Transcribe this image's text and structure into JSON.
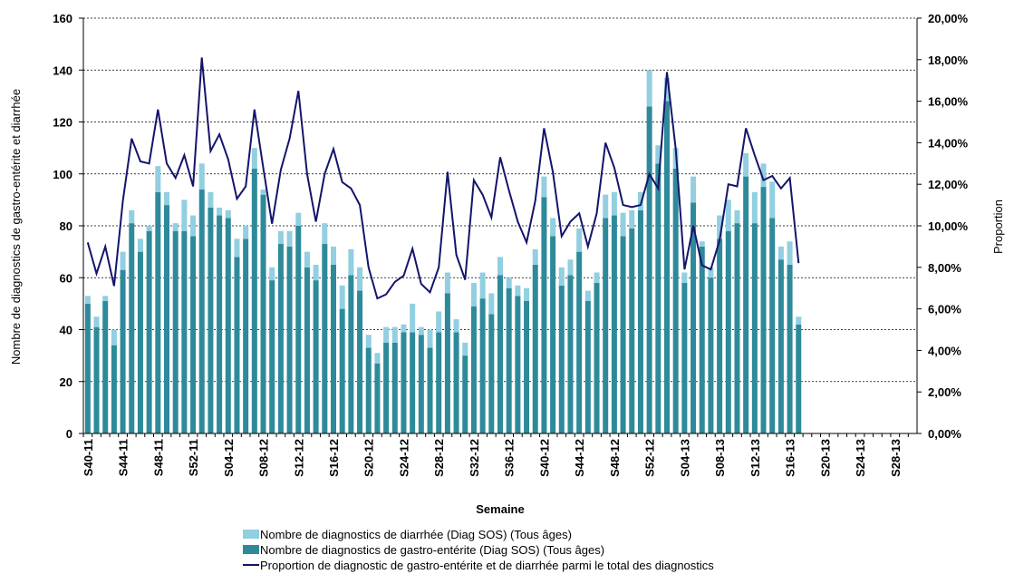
{
  "chart_data": {
    "type": "bar",
    "y_label": "Nombre de diagnostics de gastro-entérite et diarrhée",
    "y2_label": "Proportion",
    "x_label": "Semaine",
    "categories": [
      "S40-11",
      null,
      null,
      null,
      "S44-11",
      null,
      null,
      null,
      "S48-11",
      null,
      null,
      null,
      "S52-11",
      null,
      null,
      null,
      "S04-12",
      null,
      null,
      null,
      "S08-12",
      null,
      null,
      null,
      "S12-12",
      null,
      null,
      null,
      "S16-12",
      null,
      null,
      null,
      "S20-12",
      null,
      null,
      null,
      "S24-12",
      null,
      null,
      null,
      "S28-12",
      null,
      null,
      null,
      "S32-12",
      null,
      null,
      null,
      "S36-12",
      null,
      null,
      null,
      "S40-12",
      null,
      null,
      null,
      "S44-12",
      null,
      null,
      null,
      "S48-12",
      null,
      null,
      null,
      "S52-12",
      null,
      null,
      null,
      "S04-13",
      null,
      null,
      null,
      "S08-13",
      null,
      null,
      null,
      "S12-13",
      null,
      null,
      null,
      "S16-13",
      null,
      null,
      null,
      "S20-13",
      null,
      null,
      null,
      "S24-13",
      null,
      null,
      null,
      "S28-13",
      null,
      null
    ],
    "series": [
      {
        "name": "Nombre de diagnostics de diarrhée (Diag SOS) (Tous âges)",
        "color": "#92cfe0",
        "stack": true,
        "values": [
          3,
          4,
          2,
          6,
          7,
          5,
          5,
          2,
          10,
          5,
          3,
          12,
          8,
          10,
          6,
          3,
          3,
          7,
          5,
          8,
          2,
          5,
          5,
          6,
          5,
          6,
          6,
          8,
          7,
          9,
          10,
          9,
          5,
          4,
          6,
          6,
          3,
          11,
          3,
          7,
          8,
          8,
          5,
          5,
          9,
          10,
          8,
          7,
          4,
          4,
          5,
          6,
          8,
          7,
          7,
          6,
          9,
          4,
          4,
          9,
          9,
          9,
          7,
          7,
          14,
          7,
          9,
          8,
          4,
          10,
          2,
          4,
          9,
          12,
          5,
          9,
          12,
          9,
          14,
          5,
          9,
          3,
          null,
          null,
          null,
          null,
          null,
          null,
          null,
          null,
          null,
          null,
          null,
          null,
          null
        ]
      },
      {
        "name": "Nombre de diagnostics de gastro-entérite (Diag SOS) (Tous âges)",
        "color": "#2e8a9a",
        "values": [
          50,
          41,
          51,
          34,
          63,
          81,
          70,
          78,
          93,
          88,
          78,
          78,
          76,
          94,
          87,
          84,
          83,
          68,
          75,
          102,
          92,
          59,
          73,
          72,
          80,
          64,
          59,
          73,
          65,
          48,
          61,
          55,
          33,
          27,
          35,
          35,
          39,
          39,
          38,
          33,
          39,
          54,
          39,
          30,
          49,
          52,
          46,
          61,
          56,
          53,
          51,
          65,
          91,
          76,
          57,
          61,
          70,
          51,
          58,
          83,
          84,
          76,
          79,
          86,
          126,
          104,
          128,
          102,
          58,
          89,
          72,
          60,
          75,
          78,
          81,
          99,
          81,
          95,
          83,
          67,
          65,
          42,
          null,
          null,
          null,
          null,
          null,
          null,
          null,
          null,
          null,
          null,
          null,
          null,
          null
        ]
      },
      {
        "name": "Proportion de diagnostic de gastro-entérite et de diarrhée parmi le total des diagnostics",
        "color": "#14146b",
        "axis": "y2",
        "line": true,
        "values": [
          9.2,
          7.7,
          9.0,
          7.1,
          11.2,
          14.2,
          13.1,
          13.0,
          15.6,
          13.0,
          12.3,
          13.4,
          11.9,
          18.1,
          13.6,
          14.4,
          13.2,
          11.3,
          11.9,
          15.6,
          12.8,
          10.1,
          12.7,
          14.2,
          16.5,
          12.5,
          10.2,
          12.5,
          13.7,
          12.1,
          11.8,
          11.0,
          8.0,
          6.5,
          6.7,
          7.3,
          7.6,
          8.9,
          7.2,
          6.8,
          8.0,
          12.6,
          8.6,
          7.4,
          12.2,
          11.5,
          10.4,
          13.3,
          11.7,
          10.2,
          9.2,
          11.2,
          14.7,
          12.6,
          9.5,
          10.2,
          10.6,
          9.0,
          10.6,
          14.0,
          12.8,
          11.0,
          10.9,
          11.0,
          12.5,
          11.8,
          17.4,
          13.7,
          7.9,
          10.0,
          8.1,
          7.9,
          9.3,
          12.0,
          11.9,
          14.7,
          13.4,
          12.2,
          12.4,
          11.8,
          12.3,
          8.2,
          null,
          null,
          null,
          null,
          null,
          null,
          null,
          null,
          null,
          null,
          null,
          null,
          null
        ]
      }
    ],
    "ylim": [
      0,
      160
    ],
    "yticks": [
      0,
      20,
      40,
      60,
      80,
      100,
      120,
      140,
      160
    ],
    "y2lim": [
      0,
      20
    ],
    "y2ticks": [
      {
        "value": 0,
        "label": "0,00%"
      },
      {
        "value": 2,
        "label": "2,00%"
      },
      {
        "value": 4,
        "label": "4,00%"
      },
      {
        "value": 6,
        "label": "6,00%"
      },
      {
        "value": 8,
        "label": "8,00%"
      },
      {
        "value": 10,
        "label": "10,00%"
      },
      {
        "value": 12,
        "label": "12,00%"
      },
      {
        "value": 14,
        "label": "14,00%"
      },
      {
        "value": 16,
        "label": "16,00%"
      },
      {
        "value": 18,
        "label": "18,00%"
      },
      {
        "value": 20,
        "label": "20,00%"
      }
    ],
    "grid": true
  }
}
